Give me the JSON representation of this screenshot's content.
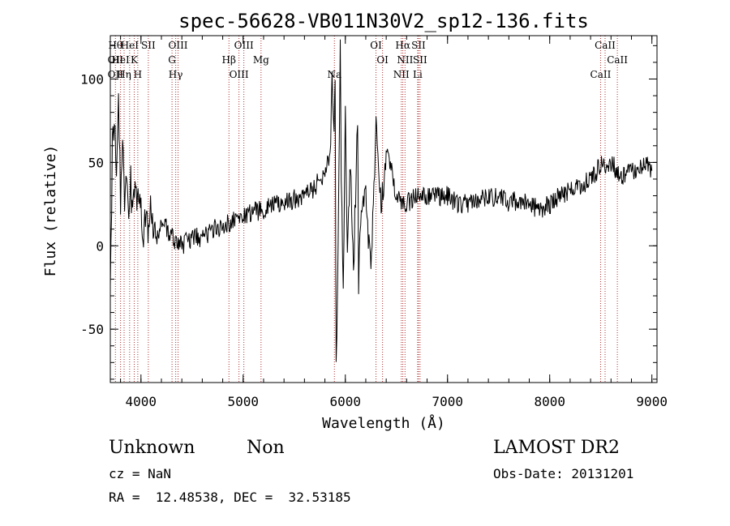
{
  "chart_data": {
    "type": "line",
    "title": "spec-56628-VB011N30V2_sp12-136.fits",
    "xlabel": "Wavelength (Å)",
    "ylabel": "Flux (relative)",
    "xlim": [
      3700,
      9050
    ],
    "ylim": [
      -82,
      126
    ],
    "xticks": [
      4000,
      5000,
      6000,
      7000,
      8000,
      9000
    ],
    "yticks": [
      -50,
      0,
      50,
      100
    ],
    "grid": false,
    "line_color": "#000000",
    "marker_color": "#b03030",
    "series": [
      {
        "x": [
          3700,
          3720,
          3740,
          3760,
          3780,
          3800,
          3820,
          3840,
          3860,
          3880,
          3900,
          3930,
          3960,
          4000,
          4050,
          4100,
          4150,
          4200,
          4300,
          4400,
          4500,
          4600,
          4700,
          4800,
          4900,
          5000,
          5100,
          5200,
          5300,
          5400,
          5500,
          5600,
          5700,
          5750,
          5800,
          5850,
          5870,
          5890,
          5900,
          5910,
          5930,
          5950,
          5960,
          5980,
          6000,
          6020,
          6050,
          6080,
          6100,
          6120,
          6130,
          6150,
          6200,
          6250,
          6280,
          6300,
          6350,
          6400,
          6500,
          6600,
          6700,
          6800,
          6900,
          7000,
          7100,
          7200,
          7300,
          7400,
          7500,
          7600,
          7700,
          7800,
          7900,
          8000,
          8100,
          8200,
          8300,
          8400,
          8500,
          8600,
          8700,
          8800,
          8900,
          8950,
          9000
        ],
        "values": [
          -10,
          55,
          85,
          40,
          95,
          20,
          60,
          30,
          45,
          15,
          35,
          25,
          30,
          15,
          10,
          20,
          0,
          15,
          5,
          0,
          5,
          5,
          10,
          12,
          15,
          18,
          20,
          22,
          25,
          25,
          28,
          30,
          35,
          40,
          45,
          55,
          95,
          60,
          100,
          -75,
          0,
          115,
          40,
          -20,
          80,
          -10,
          50,
          -15,
          30,
          80,
          -25,
          20,
          30,
          -15,
          40,
          70,
          20,
          60,
          30,
          25,
          30,
          30,
          30,
          30,
          25,
          25,
          28,
          28,
          30,
          25,
          28,
          25,
          22,
          25,
          30,
          33,
          35,
          40,
          48,
          50,
          42,
          45,
          48,
          52,
          45
        ]
      }
    ],
    "line_markers": [
      {
        "wl": 3750,
        "labels": [
          "Hθ",
          "OII",
          "OII"
        ]
      },
      {
        "wl": 3800,
        "labels": [
          "HeI"
        ]
      },
      {
        "wl": 3835,
        "labels": [
          "Hη"
        ]
      },
      {
        "wl": 3889,
        "labels": [
          "HeI"
        ]
      },
      {
        "wl": 3934,
        "labels": [
          "K"
        ]
      },
      {
        "wl": 3969,
        "labels": [
          "H"
        ]
      },
      {
        "wl": 4072,
        "labels": [
          "SII"
        ]
      },
      {
        "wl": 4304,
        "labels": [
          "G"
        ]
      },
      {
        "wl": 4340,
        "labels": [
          "Hγ"
        ]
      },
      {
        "wl": 4363,
        "labels": [
          "OIII"
        ]
      },
      {
        "wl": 4861,
        "labels": [
          "Hβ"
        ]
      },
      {
        "wl": 4959,
        "labels": [
          "OIII"
        ]
      },
      {
        "wl": 5007,
        "labels": [
          "OIII"
        ]
      },
      {
        "wl": 5175,
        "labels": [
          "Mg"
        ]
      },
      {
        "wl": 5893,
        "labels": [
          "Na"
        ]
      },
      {
        "wl": 6300,
        "labels": [
          "OI"
        ]
      },
      {
        "wl": 6364,
        "labels": [
          "OI"
        ]
      },
      {
        "wl": 6548,
        "labels": [
          "NII"
        ]
      },
      {
        "wl": 6563,
        "labels": [
          "Hα"
        ]
      },
      {
        "wl": 6584,
        "labels": [
          "NII"
        ]
      },
      {
        "wl": 6708,
        "labels": [
          "Li"
        ]
      },
      {
        "wl": 6716,
        "labels": [
          "SII"
        ]
      },
      {
        "wl": 6731,
        "labels": [
          "SII"
        ]
      },
      {
        "wl": 8498,
        "labels": [
          "CaII"
        ]
      },
      {
        "wl": 8542,
        "labels": [
          "CaII"
        ]
      },
      {
        "wl": 8662,
        "labels": [
          "CaII"
        ]
      }
    ]
  },
  "info": {
    "class": "Unknown",
    "subclass": "Non",
    "survey": "LAMOST DR2",
    "cz": "cz = NaN",
    "obs_date": "Obs-Date: 20131201",
    "coords": "RA =  12.48538, DEC =  32.53185"
  }
}
